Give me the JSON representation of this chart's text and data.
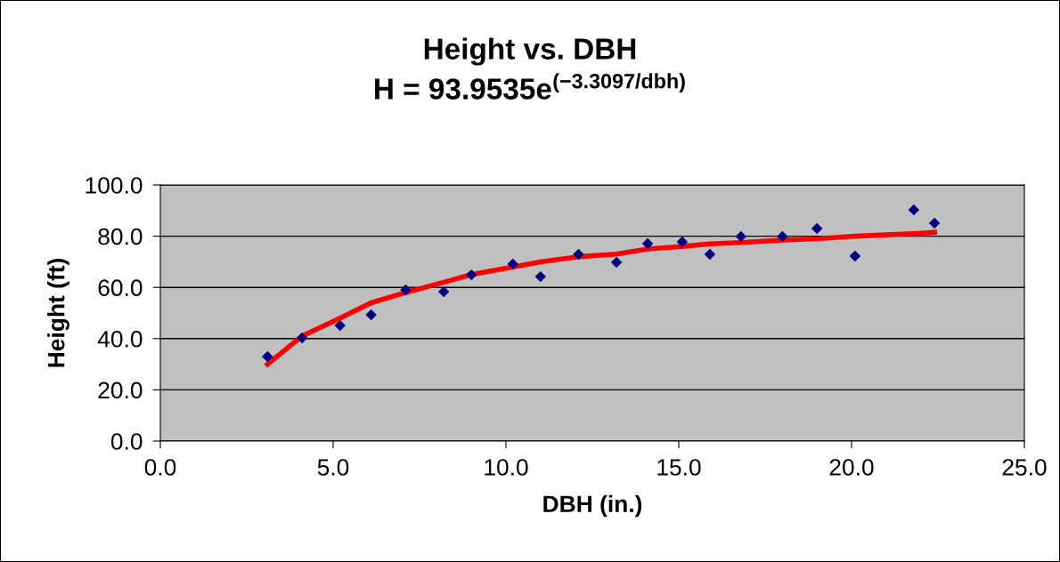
{
  "chart_data": {
    "type": "scatter",
    "title": "Height vs. DBH",
    "subtitle": "H = 93.9535e$^{(−3.3097/dbh)}$",
    "xlabel": "DBH (in.)",
    "ylabel": "Height (ft)",
    "series": [
      {
        "color": "#000080",
        "marker": "diamond",
        "x": [
          3.1,
          4.1,
          5.2,
          6.1,
          7.1,
          8.2,
          9.0,
          10.2,
          11.0,
          12.1,
          13.2,
          14.1,
          15.1,
          15.9,
          16.8,
          18.0,
          19.0,
          20.1,
          21.8,
          22.4
        ],
        "values": [
          33.0,
          40.3,
          45.1,
          49.3,
          59.0,
          58.3,
          64.9,
          69.1,
          64.2,
          72.9,
          69.8,
          77.1,
          77.8,
          72.9,
          79.9,
          79.9,
          83.0,
          72.2,
          90.3,
          85.1
        ]
      },
      {
        "type": "line",
        "color": "#ff0000",
        "marker": "none",
        "x": [
          3.1,
          4.1,
          5.2,
          6.1,
          7.1,
          8.2,
          9.0,
          10.2,
          11.0,
          12.1,
          13.2,
          14.1,
          15.1,
          15.9,
          16.8,
          18.0,
          19.0,
          20.1,
          21.8,
          22.4
        ],
        "values": [
          30,
          41,
          48,
          54,
          58,
          62,
          65,
          68,
          70,
          72,
          73,
          75,
          76,
          77,
          77.5,
          78.5,
          79,
          80,
          81,
          81.5
        ]
      }
    ],
    "xlim": [
      0,
      25
    ],
    "xticks": [
      {
        "value": 0,
        "label": "0.0"
      },
      {
        "value": 5,
        "label": "5.0"
      },
      {
        "value": 10,
        "label": "10.0"
      },
      {
        "value": 15,
        "label": "15.0"
      },
      {
        "value": 20,
        "label": "20.0"
      },
      {
        "value": 25,
        "label": "25.0"
      }
    ],
    "ylim": [
      0,
      100
    ],
    "yticks": [
      {
        "value": 0,
        "label": "0.0"
      },
      {
        "value": 20,
        "label": "20.0"
      },
      {
        "value": 40,
        "label": "40.0"
      },
      {
        "value": 60,
        "label": "60.0"
      },
      {
        "value": 80,
        "label": "80.0"
      },
      {
        "value": 100,
        "label": "100.0"
      }
    ],
    "grid": "y"
  }
}
